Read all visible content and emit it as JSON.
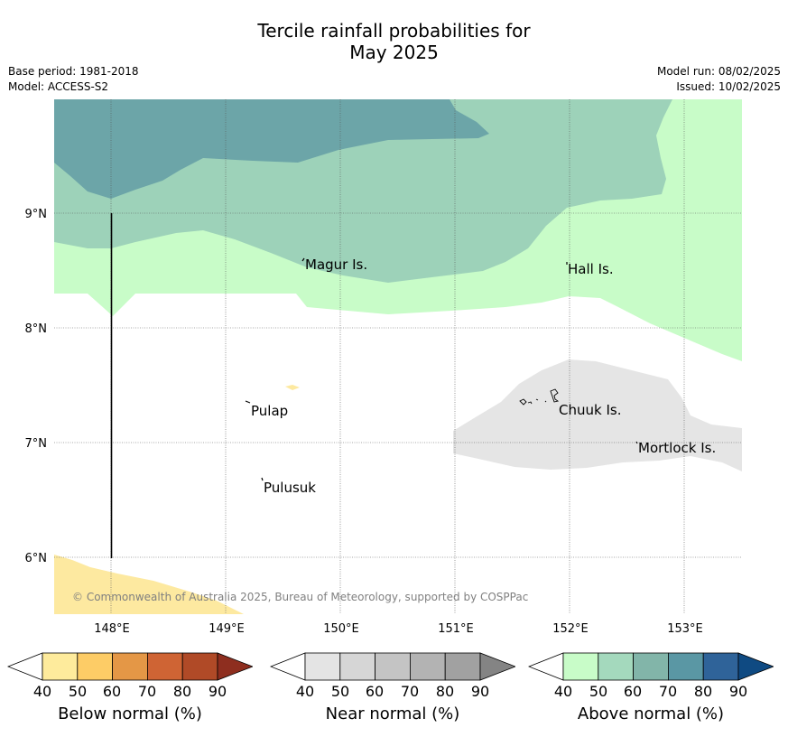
{
  "header": {
    "title_line1": "Tercile rainfall probabilities for",
    "title_line2": "May 2025",
    "base_period": "Base period: 1981-2018",
    "model": "Model: ACCESS-S2",
    "model_run": "Model run: 08/02/2025",
    "issued": "Issued: 10/02/2025"
  },
  "map": {
    "lat_labels": [
      "9°N",
      "8°N",
      "7°N",
      "6°N"
    ],
    "lon_labels": [
      "148°E",
      "149°E",
      "150°E",
      "151°E",
      "152°E",
      "153°E"
    ],
    "places": [
      "Magur Is.",
      "Hall Is.",
      "Pulap",
      "Chuuk Is.",
      "Mortlock Is.",
      "Pulusuk"
    ],
    "copyright": "© Commonwealth of Australia 2025, Bureau of Meteorology, supported by COSPPac",
    "region_colors": {
      "above_40_50": "#c8fcc8",
      "above_50_60": "#9dd2b9",
      "above_60_70": "#6ca5a8",
      "near_40_50": "#e5e5e5",
      "below_40_50": "#fde9a0"
    }
  },
  "colorbars": [
    {
      "label": "Below normal (%)",
      "ticks": [
        "40",
        "50",
        "60",
        "70",
        "80",
        "90"
      ],
      "colors": [
        "#ffffff",
        "#feeb9c",
        "#fdcc66",
        "#e49746",
        "#cf6434",
        "#b04a27",
        "#8e2e1f"
      ]
    },
    {
      "label": "Near normal (%)",
      "ticks": [
        "40",
        "50",
        "60",
        "70",
        "80",
        "90"
      ],
      "colors": [
        "#ffffff",
        "#e4e4e4",
        "#d6d6d6",
        "#c4c4c4",
        "#b3b3b3",
        "#a1a1a1",
        "#848484"
      ]
    },
    {
      "label": "Above normal (%)",
      "ticks": [
        "40",
        "50",
        "60",
        "70",
        "80",
        "90"
      ],
      "colors": [
        "#ffffff",
        "#c8fcc8",
        "#a4d9bd",
        "#82b5a9",
        "#5a97a4",
        "#2f6399",
        "#0f4a82"
      ]
    }
  ]
}
